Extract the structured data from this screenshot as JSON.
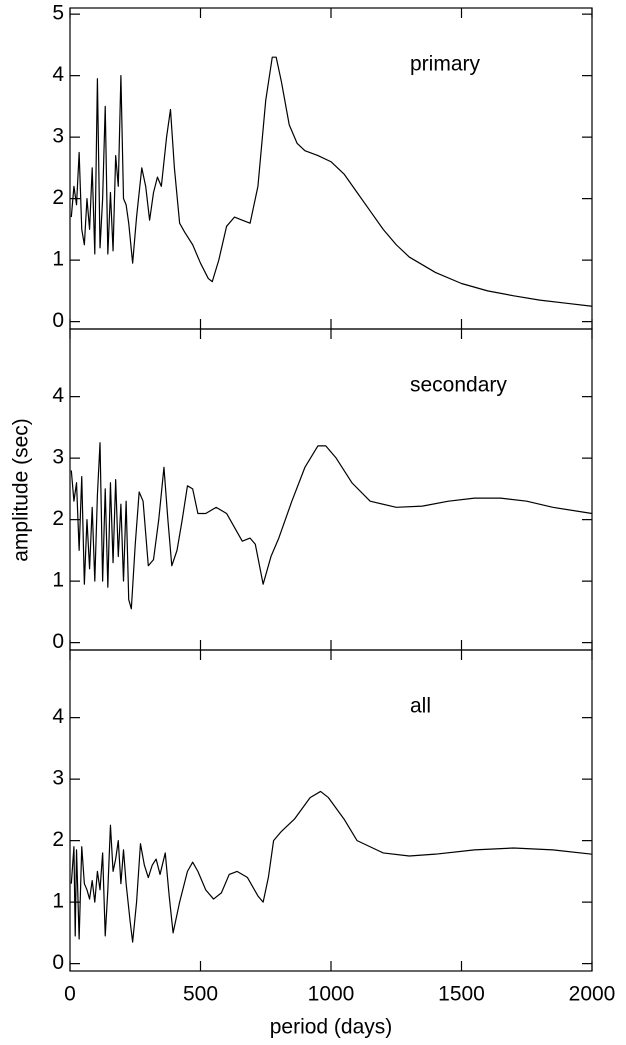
{
  "chart_data": [
    {
      "type": "line",
      "annotation": "primary",
      "x": [
        5,
        15,
        25,
        35,
        45,
        55,
        65,
        75,
        85,
        95,
        105,
        115,
        125,
        135,
        145,
        155,
        165,
        175,
        185,
        195,
        205,
        215,
        225,
        240,
        255,
        275,
        290,
        305,
        320,
        335,
        350,
        370,
        385,
        400,
        420,
        440,
        470,
        500,
        530,
        545,
        570,
        600,
        630,
        660,
        690,
        720,
        750,
        775,
        790,
        810,
        840,
        870,
        900,
        950,
        1000,
        1050,
        1100,
        1150,
        1200,
        1250,
        1300,
        1400,
        1500,
        1600,
        1700,
        1800,
        1900,
        2000
      ],
      "values": [
        1.7,
        2.2,
        1.9,
        2.75,
        1.5,
        1.25,
        2.0,
        1.5,
        2.5,
        1.1,
        3.95,
        1.2,
        2.0,
        3.5,
        1.1,
        2.1,
        1.15,
        2.7,
        2.2,
        4.0,
        2.0,
        1.9,
        1.6,
        0.95,
        1.7,
        2.5,
        2.2,
        1.65,
        2.1,
        2.35,
        2.2,
        3.0,
        3.45,
        2.5,
        1.6,
        1.45,
        1.25,
        0.95,
        0.7,
        0.65,
        1.0,
        1.55,
        1.7,
        1.65,
        1.6,
        2.2,
        3.6,
        4.3,
        4.3,
        3.9,
        3.2,
        2.9,
        2.78,
        2.7,
        2.6,
        2.4,
        2.1,
        1.8,
        1.5,
        1.25,
        1.05,
        0.8,
        0.62,
        0.5,
        0.42,
        0.35,
        0.3,
        0.25
      ],
      "xlim": [
        0,
        2000
      ],
      "xticks": [
        0,
        500,
        1000,
        1500,
        2000
      ],
      "ylim": [
        -0.12,
        5.1
      ],
      "yticks": [
        0,
        1,
        2,
        3,
        4,
        5
      ],
      "color": "#000000"
    },
    {
      "type": "line",
      "annotation": "secondary",
      "ylabel": "amplitude (sec)",
      "x": [
        5,
        15,
        25,
        35,
        45,
        55,
        65,
        75,
        85,
        95,
        105,
        115,
        125,
        135,
        145,
        155,
        165,
        175,
        185,
        195,
        205,
        215,
        225,
        235,
        250,
        265,
        280,
        300,
        320,
        340,
        360,
        375,
        390,
        410,
        430,
        450,
        470,
        490,
        520,
        560,
        600,
        640,
        660,
        690,
        710,
        740,
        770,
        800,
        850,
        900,
        950,
        980,
        1020,
        1080,
        1150,
        1250,
        1350,
        1450,
        1550,
        1650,
        1750,
        1850,
        2000
      ],
      "values": [
        2.8,
        2.3,
        2.6,
        1.5,
        2.7,
        0.95,
        2.0,
        1.2,
        2.2,
        1.0,
        2.4,
        3.25,
        1.0,
        2.5,
        0.9,
        2.6,
        1.3,
        2.65,
        1.4,
        2.25,
        1.0,
        2.3,
        0.7,
        0.55,
        1.6,
        2.45,
        2.3,
        1.25,
        1.35,
        2.0,
        2.85,
        2.0,
        1.25,
        1.5,
        2.0,
        2.55,
        2.5,
        2.1,
        2.1,
        2.2,
        2.1,
        1.8,
        1.65,
        1.7,
        1.6,
        0.95,
        1.4,
        1.7,
        2.3,
        2.85,
        3.2,
        3.2,
        3.0,
        2.6,
        2.3,
        2.2,
        2.22,
        2.3,
        2.35,
        2.35,
        2.3,
        2.2,
        2.1
      ],
      "xlim": [
        0,
        2000
      ],
      "xticks": [
        0,
        500,
        1000,
        1500,
        2000
      ],
      "ylim": [
        -0.12,
        5.1
      ],
      "yticks": [
        0,
        1,
        2,
        3,
        4
      ],
      "color": "#000000"
    },
    {
      "type": "line",
      "annotation": "all",
      "xlabel": "period (days)",
      "x": [
        5,
        15,
        20,
        25,
        35,
        45,
        55,
        65,
        75,
        85,
        95,
        105,
        115,
        125,
        135,
        145,
        155,
        165,
        175,
        185,
        195,
        205,
        215,
        230,
        240,
        255,
        270,
        285,
        300,
        315,
        330,
        345,
        365,
        380,
        395,
        420,
        450,
        470,
        490,
        520,
        550,
        580,
        610,
        640,
        680,
        720,
        740,
        760,
        780,
        810,
        860,
        920,
        960,
        990,
        1050,
        1100,
        1200,
        1300,
        1400,
        1550,
        1700,
        1850,
        2000
      ],
      "values": [
        1.3,
        1.9,
        0.45,
        1.85,
        0.4,
        1.9,
        1.3,
        1.2,
        1.05,
        1.35,
        1.0,
        1.5,
        1.2,
        1.8,
        0.45,
        1.2,
        2.25,
        1.5,
        1.7,
        2.0,
        1.3,
        1.85,
        1.3,
        0.7,
        0.35,
        1.0,
        1.95,
        1.6,
        1.4,
        1.6,
        1.7,
        1.45,
        1.8,
        1.1,
        0.5,
        1.0,
        1.5,
        1.65,
        1.5,
        1.2,
        1.05,
        1.15,
        1.45,
        1.5,
        1.4,
        1.1,
        1.0,
        1.4,
        2.0,
        2.15,
        2.35,
        2.7,
        2.8,
        2.7,
        2.35,
        2.0,
        1.8,
        1.75,
        1.78,
        1.85,
        1.88,
        1.85,
        1.78
      ],
      "xlim": [
        0,
        2000
      ],
      "xticks": [
        0,
        500,
        1000,
        1500,
        2000
      ],
      "ylim": [
        -0.12,
        5.1
      ],
      "yticks": [
        0,
        1,
        2,
        3,
        4
      ],
      "color": "#000000"
    }
  ]
}
